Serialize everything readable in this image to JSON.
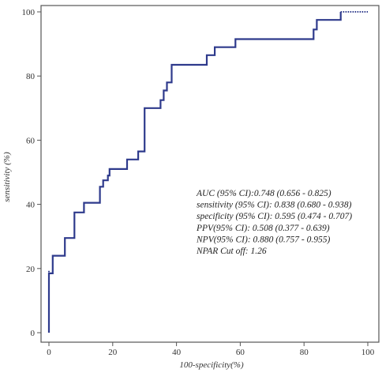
{
  "chart_data": {
    "type": "line",
    "title": "",
    "xlabel": "100-specificity(%)",
    "ylabel": "sensitivity (%)",
    "xlim": [
      0,
      100
    ],
    "ylim": [
      0,
      100
    ],
    "x_ticks": [
      "0",
      "20",
      "40",
      "60",
      "80",
      "100"
    ],
    "y_ticks": [
      "0",
      "20",
      "40",
      "60",
      "80",
      "100"
    ],
    "grid": false,
    "legend": "none",
    "line_color": "#2e3a8c",
    "series": [
      {
        "x": [
          0,
          0,
          1.2,
          1.2,
          5,
          5,
          8,
          8,
          11,
          11,
          16,
          16,
          17,
          17,
          18.5,
          18.5,
          19,
          19,
          24.5,
          24.5,
          28,
          28,
          30,
          30,
          31,
          31,
          35,
          35,
          36,
          36,
          37,
          37,
          38.5,
          38.5,
          40.5,
          40.5,
          49.5,
          49.5,
          52,
          52,
          58.5,
          58.5,
          83,
          83,
          84,
          84,
          91.5,
          91.5
        ],
        "y": [
          0,
          18.5,
          18.5,
          24,
          24,
          29.5,
          29.5,
          37.5,
          37.5,
          40.5,
          40.5,
          45.5,
          45.5,
          47.5,
          47.5,
          49,
          49,
          51,
          51,
          54,
          54,
          56.5,
          56.5,
          70,
          70,
          70,
          70,
          72.5,
          72.5,
          75.5,
          75.5,
          78,
          78,
          83.5,
          83.5,
          83.5,
          83.5,
          86.5,
          86.5,
          89,
          89,
          91.5,
          91.5,
          94.5,
          94.5,
          97.5,
          97.5,
          100
        ]
      }
    ],
    "ci_segments": [
      {
        "x1": 0,
        "y1": 13,
        "x2": 0,
        "y2": 19.5
      },
      {
        "x1": 91.5,
        "y1": 100,
        "x2": 100,
        "y2": 100
      }
    ],
    "annotations": [
      "AUC (95% CI):0.748 (0.656 - 0.825)",
      "sensitivity (95% CI): 0.838 (0.680 - 0.938)",
      "specificity (95% CI): 0.595 (0.474 - 0.707)",
      "PPV(95% CI): 0.508 (0.377 - 0.639)",
      "NPV(95% CI): 0.880 (0.757 - 0.955)",
      "NPAR Cut off: 1.26"
    ]
  }
}
